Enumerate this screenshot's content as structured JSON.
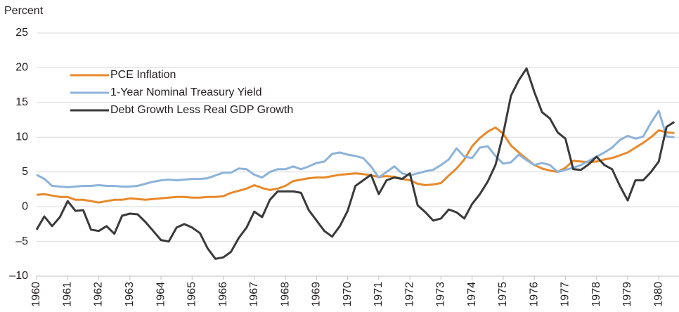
{
  "chart_data": {
    "type": "line",
    "y_label": "Percent",
    "x": [
      1960,
      1960.25,
      1960.5,
      1960.75,
      1961,
      1961.25,
      1961.5,
      1961.75,
      1962,
      1962.25,
      1962.5,
      1962.75,
      1963,
      1963.25,
      1963.5,
      1963.75,
      1964,
      1964.25,
      1964.5,
      1964.75,
      1965,
      1965.25,
      1965.5,
      1965.75,
      1966,
      1966.25,
      1966.5,
      1966.75,
      1967,
      1967.25,
      1967.5,
      1967.75,
      1968,
      1968.25,
      1968.5,
      1968.75,
      1969,
      1969.25,
      1969.5,
      1969.75,
      1970,
      1970.25,
      1970.5,
      1970.75,
      1971,
      1971.25,
      1971.5,
      1971.75,
      1972,
      1972.25,
      1972.5,
      1972.75,
      1973,
      1973.25,
      1973.5,
      1973.75,
      1974,
      1974.25,
      1974.5,
      1974.75,
      1975,
      1975.25,
      1975.5,
      1975.75,
      1976,
      1976.25,
      1976.5,
      1976.75,
      1977,
      1977.25,
      1977.5,
      1977.75,
      1978,
      1978.25,
      1978.5,
      1978.75,
      1979,
      1979.25,
      1979.5,
      1979.75,
      1980,
      1980.25,
      1980.5
    ],
    "series": [
      {
        "name": "PCE Inflation",
        "color": "#e8892b",
        "values": [
          1.7,
          1.8,
          1.6,
          1.4,
          1.4,
          1.0,
          1.0,
          0.8,
          0.6,
          0.8,
          1.0,
          1.0,
          1.2,
          1.1,
          1.0,
          1.1,
          1.2,
          1.3,
          1.4,
          1.4,
          1.3,
          1.3,
          1.4,
          1.4,
          1.5,
          2.0,
          2.3,
          2.6,
          3.1,
          2.7,
          2.4,
          2.6,
          3.0,
          3.7,
          3.9,
          4.1,
          4.2,
          4.2,
          4.4,
          4.6,
          4.7,
          4.8,
          4.7,
          4.5,
          4.3,
          4.4,
          4.3,
          4.0,
          3.8,
          3.3,
          3.1,
          3.2,
          3.4,
          4.5,
          5.5,
          6.8,
          8.7,
          9.9,
          10.8,
          11.4,
          10.5,
          8.8,
          7.8,
          6.9,
          6.0,
          5.5,
          5.2,
          5.0,
          5.6,
          6.6,
          6.5,
          6.4,
          6.5,
          6.8,
          7.0,
          7.4,
          7.8,
          8.5,
          9.2,
          10.0,
          11.0,
          10.7,
          10.6
        ]
      },
      {
        "name": "1-Year Nominal Treasury Yield",
        "color": "#8db3d9",
        "values": [
          4.6,
          4.0,
          3.0,
          2.9,
          2.8,
          2.9,
          3.0,
          3.0,
          3.1,
          3.0,
          3.0,
          2.9,
          2.9,
          3.0,
          3.3,
          3.6,
          3.8,
          3.9,
          3.8,
          3.9,
          4.0,
          4.0,
          4.1,
          4.5,
          4.9,
          4.9,
          5.5,
          5.4,
          4.6,
          4.2,
          5.0,
          5.4,
          5.4,
          5.8,
          5.4,
          5.8,
          6.3,
          6.5,
          7.6,
          7.8,
          7.5,
          7.3,
          7.0,
          5.8,
          4.2,
          5.0,
          5.8,
          4.8,
          4.5,
          4.8,
          5.1,
          5.3,
          6.0,
          6.8,
          8.4,
          7.2,
          7.0,
          8.5,
          8.7,
          7.3,
          6.2,
          6.4,
          7.5,
          6.7,
          6.0,
          6.3,
          6.0,
          5.0,
          5.3,
          5.6,
          6.0,
          6.6,
          7.2,
          7.8,
          8.5,
          9.6,
          10.2,
          9.8,
          10.1,
          12.1,
          13.8,
          10.1,
          10.0
        ]
      },
      {
        "name": "Debt Growth Less Real GDP Growth",
        "color": "#3a3a3a",
        "values": [
          -3.3,
          -1.4,
          -2.8,
          -1.5,
          0.8,
          -0.6,
          -0.5,
          -3.3,
          -3.5,
          -2.8,
          -3.9,
          -1.3,
          -1.0,
          -1.1,
          -2.2,
          -3.5,
          -4.8,
          -5.0,
          -3.0,
          -2.5,
          -3.0,
          -3.8,
          -6.0,
          -7.5,
          -7.3,
          -6.5,
          -4.5,
          -3.0,
          -0.7,
          -1.5,
          1.0,
          2.2,
          2.2,
          2.2,
          2.0,
          -0.5,
          -2.0,
          -3.5,
          -4.3,
          -2.8,
          -0.6,
          3.0,
          3.8,
          4.6,
          1.8,
          3.8,
          4.2,
          4.0,
          4.8,
          0.2,
          -0.8,
          -2.0,
          -1.7,
          -0.4,
          -0.8,
          -1.7,
          0.4,
          1.8,
          3.6,
          6.0,
          10.5,
          16.0,
          18.2,
          19.9,
          16.5,
          13.6,
          12.7,
          10.7,
          9.8,
          5.4,
          5.3,
          6.1,
          7.2,
          6.0,
          5.4,
          3.0,
          0.9,
          3.8,
          3.8,
          5.0,
          6.5,
          11.5,
          12.2
        ]
      }
    ],
    "xlim": [
      1960,
      1980.65
    ],
    "xticks": [
      1960,
      1961,
      1962,
      1963,
      1964,
      1965,
      1966,
      1967,
      1968,
      1969,
      1970,
      1971,
      1972,
      1973,
      1974,
      1975,
      1976,
      1977,
      1978,
      1979,
      1980
    ],
    "ylim": [
      -10,
      25
    ],
    "yticks": [
      {
        "value": -10,
        "label": "–10"
      },
      {
        "value": -5,
        "label": "–5"
      },
      0,
      5,
      10,
      15,
      20,
      25
    ],
    "grid": true,
    "legend": "upper left"
  }
}
